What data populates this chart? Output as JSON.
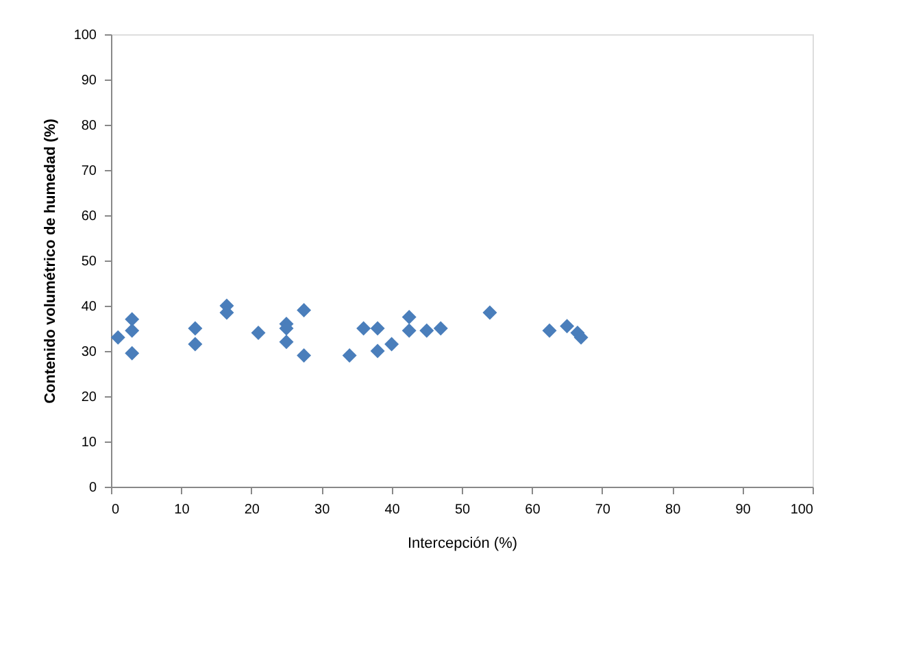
{
  "chart_data": {
    "type": "scatter",
    "xlabel": "Intercepción (%)",
    "ylabel": "Contenido volumétrico de humedad (%)",
    "x": [
      1,
      3,
      3,
      3,
      12,
      12,
      16.5,
      16.5,
      21,
      25,
      25,
      25,
      27.5,
      27.5,
      34,
      36,
      38,
      38,
      40,
      42.5,
      42.5,
      45,
      47,
      54,
      62.5,
      65,
      66.5,
      67
    ],
    "series": [
      {
        "color": "#4a7ebb",
        "values": [
          33,
          37,
          34.5,
          29.5,
          35,
          31.5,
          40,
          38.5,
          34,
          36,
          35,
          32,
          39,
          29,
          29,
          35,
          35,
          30,
          31.5,
          37.5,
          34.5,
          34.5,
          35,
          38.5,
          34.5,
          35.5,
          34,
          33
        ]
      }
    ],
    "xlim": [
      0,
      100
    ],
    "xticks": [
      0,
      10,
      20,
      30,
      40,
      50,
      60,
      70,
      80,
      90,
      100
    ],
    "ylim": [
      0,
      100
    ],
    "yticks": [
      0,
      10,
      20,
      30,
      40,
      50,
      60,
      70,
      80,
      90,
      100
    ],
    "marker": "diamond",
    "grid": false,
    "legend": false
  }
}
